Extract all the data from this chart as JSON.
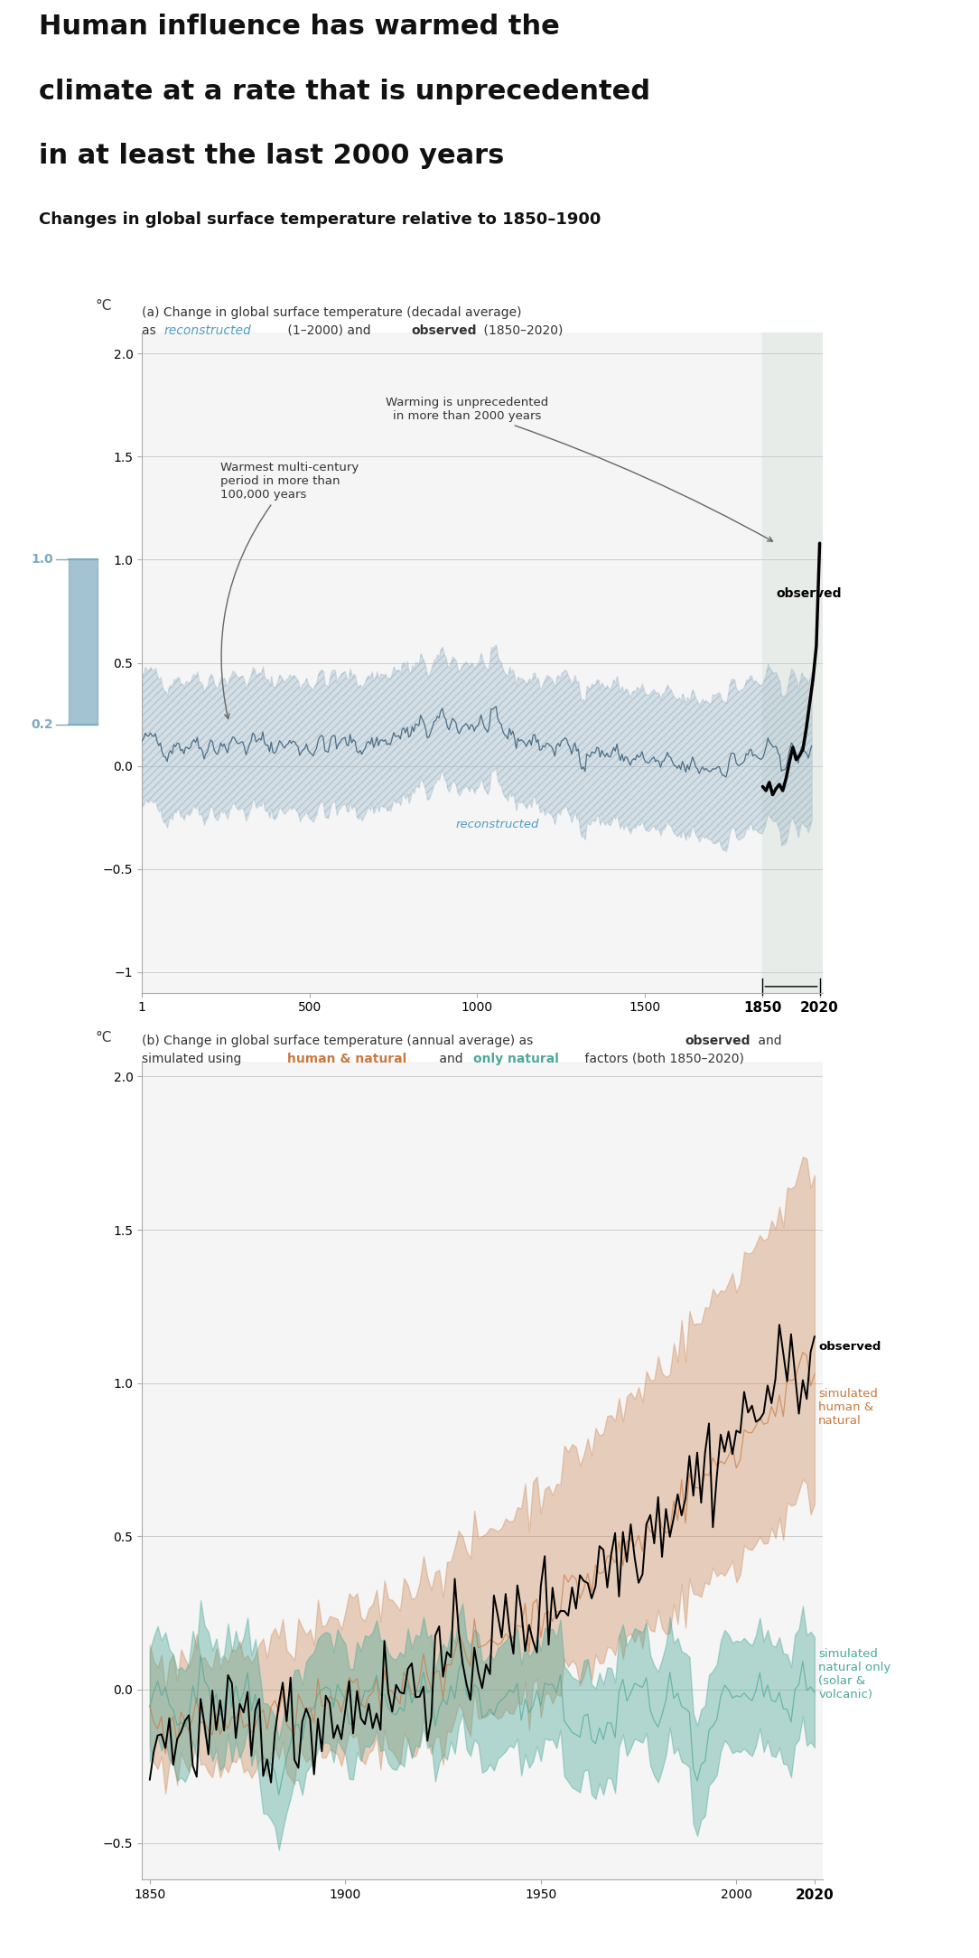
{
  "title_line1": "Human influence has warmed the",
  "title_line2": "climate at a rate that is unprecedented",
  "title_line3": "in at least the last 2000 years",
  "title_sub": "Changes in global surface temperature relative to 1850–1900",
  "reconstructed_color": "#4d9dc0",
  "human_natural_color": "#c87941",
  "natural_only_color": "#4ca898",
  "recon_band_color": "#9bb4c4",
  "highlight_bg": "#e8ece8",
  "bar_high": 1.0,
  "bar_low": 0.2,
  "bar_color": "#7eaabf",
  "fig_background": "#ffffff",
  "panel_bg": "#f0f0f0"
}
